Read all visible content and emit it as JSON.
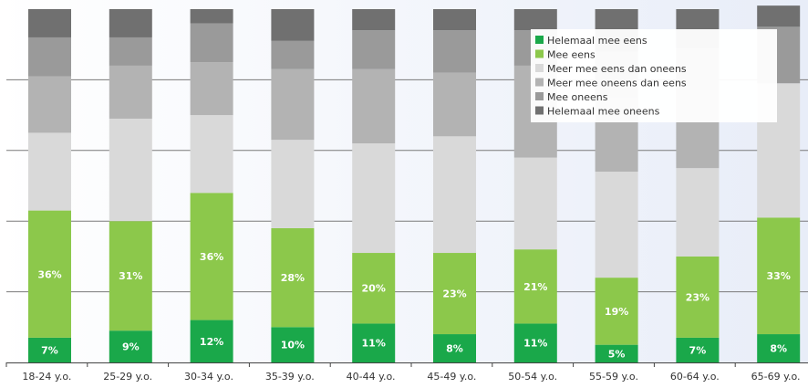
{
  "chart_data": {
    "type": "bar",
    "stacked": true,
    "normalized": true,
    "categories": [
      "18-24 y.o.",
      "25-29 y.o.",
      "30-34 y.o.",
      "35-39 y.o.",
      "40-44 y.o.",
      "45-49 y.o.",
      "50-54 y.o.",
      "55-59 y.o.",
      "60-64 y.o.",
      "65-69 y.o."
    ],
    "series": [
      {
        "name": "Helemaal mee eens",
        "color": "#1aa84a",
        "values": [
          7,
          9,
          12,
          10,
          11,
          8,
          11,
          5,
          7,
          8
        ],
        "labels": [
          "7%",
          "9%",
          "12%",
          "10%",
          "11%",
          "8%",
          "11%",
          "5%",
          "7%",
          "8%"
        ]
      },
      {
        "name": "Mee eens",
        "color": "#8cc84b",
        "values": [
          36,
          31,
          36,
          28,
          20,
          23,
          21,
          19,
          23,
          33
        ],
        "labels": [
          "36%",
          "31%",
          "36%",
          "28%",
          "20%",
          "23%",
          "21%",
          "19%",
          "23%",
          "33%"
        ]
      },
      {
        "name": "Meer mee eens dan oneens",
        "color": "#d9d9d9",
        "values": [
          22,
          29,
          22,
          25,
          31,
          33,
          26,
          30,
          25,
          38
        ]
      },
      {
        "name": "Meer mee oneens dan eens",
        "color": "#b3b3b3",
        "values": [
          16,
          15,
          15,
          20,
          21,
          18,
          26,
          21,
          22,
          0
        ]
      },
      {
        "name": "Mee oneens",
        "color": "#9a9a9a",
        "values": [
          11,
          8,
          11,
          8,
          11,
          12,
          10,
          13,
          12,
          16
        ]
      },
      {
        "name": "Helemaal mee oneens",
        "color": "#707070",
        "values": [
          8,
          8,
          4,
          9,
          6,
          6,
          6,
          12,
          11,
          6
        ]
      }
    ],
    "ylim": [
      0,
      100
    ],
    "grid": true,
    "legend_position": "top-right"
  }
}
